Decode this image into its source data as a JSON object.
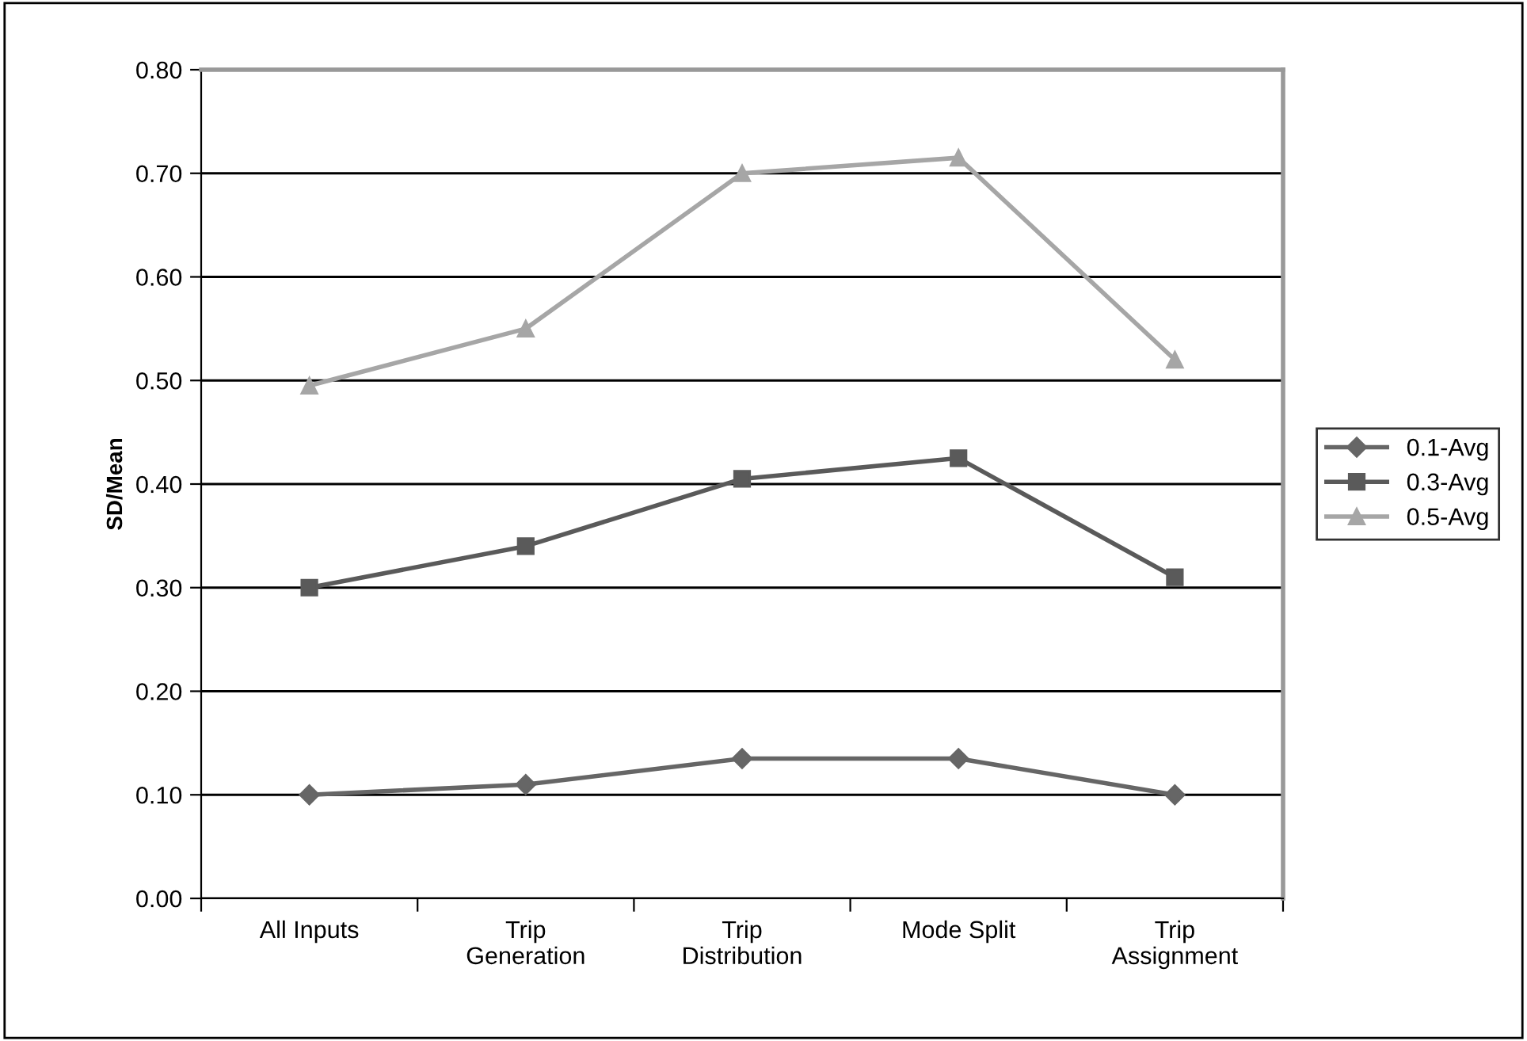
{
  "chart_data": {
    "type": "line",
    "ylabel": "SD/Mean",
    "categories": [
      "All Inputs",
      "Trip\nGeneration",
      "Trip\nDistribution",
      "Mode Split",
      "Trip\nAssignment"
    ],
    "series": [
      {
        "name": "0.1-Avg",
        "color": "#666666",
        "marker": "diamond",
        "values": [
          0.1,
          0.11,
          0.135,
          0.135,
          0.1
        ]
      },
      {
        "name": "0.3-Avg",
        "color": "#5a5a5a",
        "marker": "square",
        "values": [
          0.3,
          0.34,
          0.405,
          0.425,
          0.31
        ]
      },
      {
        "name": "0.5-Avg",
        "color": "#a6a6a6",
        "marker": "triangle",
        "values": [
          0.495,
          0.55,
          0.7,
          0.715,
          0.52
        ]
      }
    ],
    "ylim": [
      0,
      0.8
    ],
    "yticks": [
      {
        "value": 0,
        "label": "0.00"
      },
      {
        "value": 0.1,
        "label": "0.10"
      },
      {
        "value": 0.2,
        "label": "0.20"
      },
      {
        "value": 0.3,
        "label": "0.30"
      },
      {
        "value": 0.4,
        "label": "0.40"
      },
      {
        "value": 0.5,
        "label": "0.50"
      },
      {
        "value": 0.6,
        "label": "0.60"
      },
      {
        "value": 0.7,
        "label": "0.70"
      },
      {
        "value": 0.8,
        "label": "0.80"
      }
    ],
    "grid": "y",
    "legend": "right",
    "line_style": "solid"
  }
}
